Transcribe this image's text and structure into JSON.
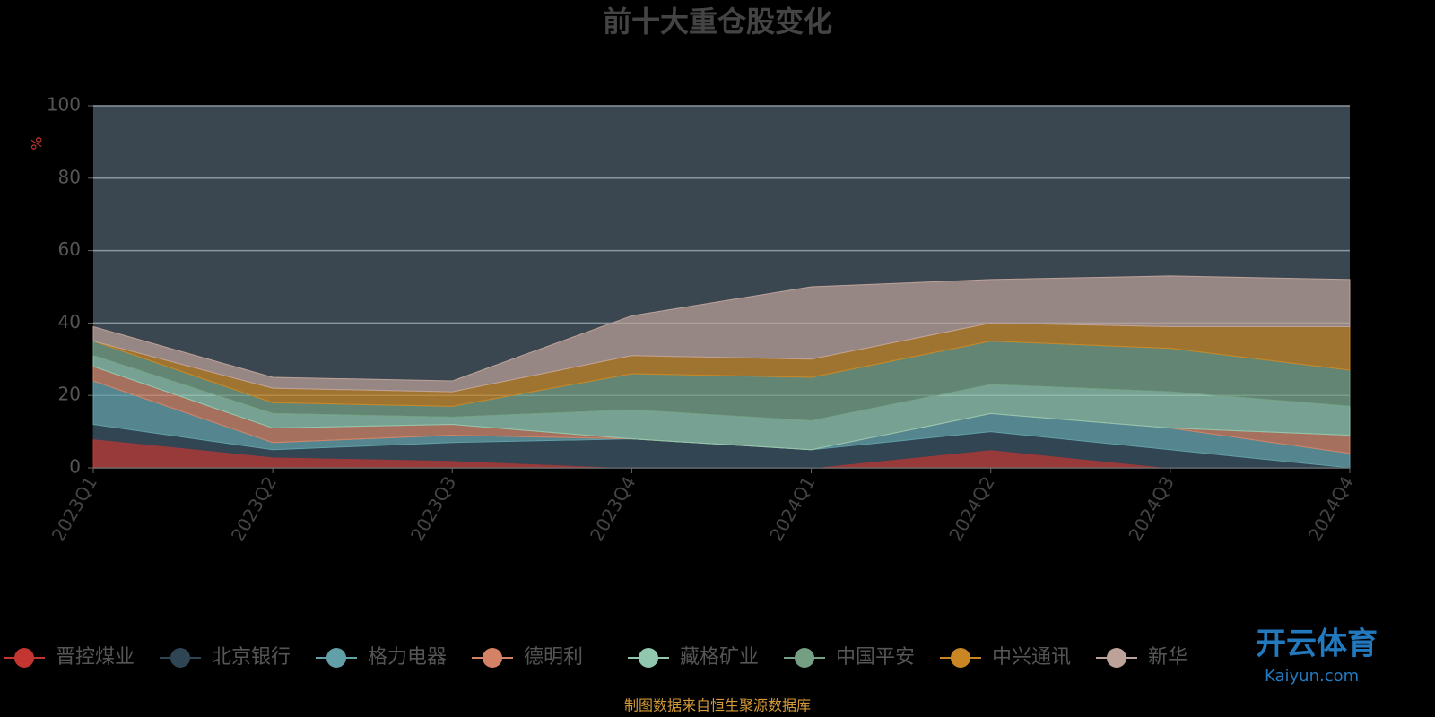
{
  "chart_data": {
    "type": "stacked-area",
    "title": "前十大重仓股变化",
    "y_unit": "%",
    "categories": [
      "2023Q1",
      "2023Q2",
      "2023Q3",
      "2023Q4",
      "2024Q1",
      "2024Q2",
      "2024Q3",
      "2024Q4"
    ],
    "ylim": [
      0,
      100
    ],
    "yticks": [
      0,
      20,
      40,
      60,
      80,
      100
    ],
    "grid": true,
    "series": [
      {
        "name": "晋控煤业",
        "color": "#c23531",
        "values": [
          8,
          3,
          2,
          0,
          0,
          5,
          0,
          0
        ]
      },
      {
        "name": "北京银行",
        "color": "#2f4554",
        "values": [
          4,
          2,
          5,
          8,
          5,
          5,
          5,
          0
        ]
      },
      {
        "name": "格力电器",
        "color": "#61a0a8",
        "values": [
          12,
          2,
          2,
          0,
          0,
          5,
          6,
          4
        ]
      },
      {
        "name": "德明利",
        "color": "#d48265",
        "values": [
          4,
          4,
          3,
          0,
          0,
          0,
          0,
          5
        ]
      },
      {
        "name": "藏格矿业",
        "color": "#91c7ae",
        "values": [
          3,
          4,
          2,
          8,
          8,
          8,
          10,
          8
        ]
      },
      {
        "name": "中国平安",
        "color": "#749f83",
        "values": [
          4,
          3,
          3,
          10,
          12,
          12,
          12,
          10
        ]
      },
      {
        "name": "中兴通讯",
        "color": "#ca8622",
        "values": [
          0,
          4,
          4,
          5,
          5,
          5,
          6,
          12
        ]
      },
      {
        "name": "新华",
        "color": "#bda29a",
        "values": [
          4,
          3,
          3,
          11,
          20,
          12,
          14,
          13
        ]
      }
    ],
    "source": "制图数据来自恒生聚源数据库"
  },
  "watermark": {
    "name": "开云体育",
    "url": "Kaiyun.com"
  }
}
